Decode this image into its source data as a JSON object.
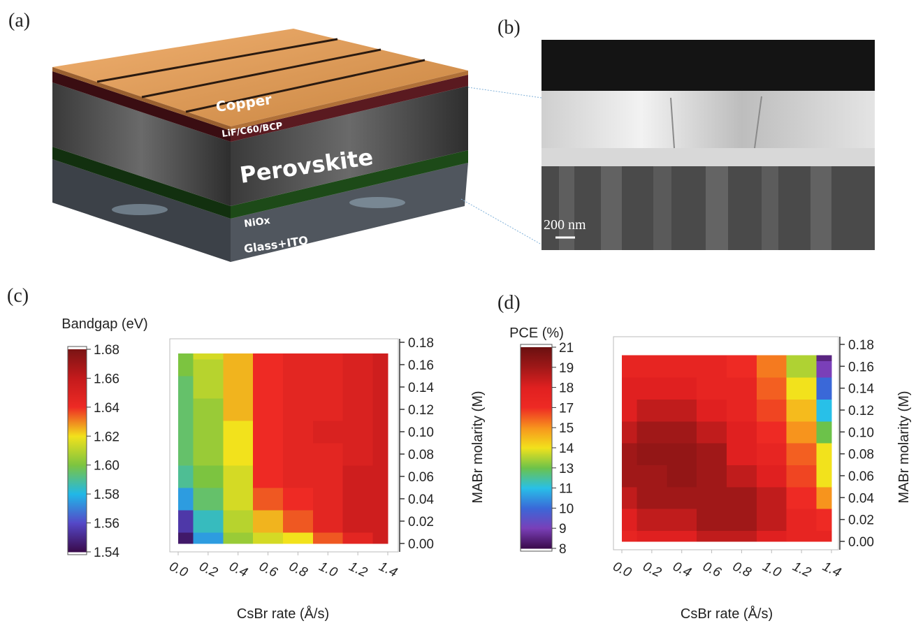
{
  "panels": {
    "a": {
      "label": "(a)",
      "layers": [
        "Copper",
        "LiF/C60/BCP",
        "Perovskite",
        "NiOx",
        "Glass+ITO"
      ]
    },
    "b": {
      "label": "(b)",
      "scale_bar": "200 nm"
    },
    "c": {
      "label": "(c)"
    },
    "d": {
      "label": "(d)"
    }
  },
  "chart_data": [
    {
      "type": "heatmap",
      "colorbar_title": "Bandgap (eV)",
      "xlabel": "CsBr rate (Å/s)",
      "ylabel": "MABr molarity (M)",
      "x": [
        0,
        0.2,
        0.4,
        0.6,
        0.8,
        1.0,
        1.2,
        1.4
      ],
      "y": [
        0,
        0.02,
        0.04,
        0.06,
        0.08,
        0.1,
        0.12,
        0.14,
        0.16,
        0.17
      ],
      "z": [
        [
          1.545,
          1.575,
          1.605,
          1.615,
          1.62,
          1.635,
          1.645,
          1.655
        ],
        [
          1.555,
          1.585,
          1.61,
          1.625,
          1.635,
          1.645,
          1.655,
          1.655
        ],
        [
          1.575,
          1.595,
          1.615,
          1.635,
          1.64,
          1.645,
          1.655,
          1.655
        ],
        [
          1.59,
          1.6,
          1.615,
          1.64,
          1.645,
          1.645,
          1.655,
          1.655
        ],
        [
          1.595,
          1.605,
          1.62,
          1.64,
          1.645,
          1.645,
          1.65,
          1.655
        ],
        [
          1.595,
          1.605,
          1.62,
          1.64,
          1.645,
          1.65,
          1.65,
          1.655
        ],
        [
          1.595,
          1.605,
          1.625,
          1.64,
          1.645,
          1.645,
          1.65,
          1.655
        ],
        [
          1.595,
          1.61,
          1.625,
          1.64,
          1.645,
          1.645,
          1.65,
          1.655
        ],
        [
          1.6,
          1.61,
          1.625,
          1.64,
          1.645,
          1.645,
          1.65,
          1.655
        ],
        [
          1.6,
          1.615,
          1.625,
          1.64,
          1.645,
          1.645,
          1.65,
          1.655
        ]
      ],
      "xlim": [
        0,
        1.4
      ],
      "ylim": [
        0,
        0.18
      ],
      "xticks": [
        {
          "value": 0,
          "label": "0.0"
        },
        {
          "value": 0.2,
          "label": "0.2"
        },
        {
          "value": 0.4,
          "label": "0.4"
        },
        {
          "value": 0.6,
          "label": "0.6"
        },
        {
          "value": 0.8,
          "label": "0.8"
        },
        {
          "value": 1.0,
          "label": "1.0"
        },
        {
          "value": 1.2,
          "label": "1.2"
        },
        {
          "value": 1.4,
          "label": "1.4"
        }
      ],
      "yticks": [
        {
          "value": 0,
          "label": "0.00"
        },
        {
          "value": 0.02,
          "label": "0.02"
        },
        {
          "value": 0.04,
          "label": "0.04"
        },
        {
          "value": 0.06,
          "label": "0.06"
        },
        {
          "value": 0.08,
          "label": "0.08"
        },
        {
          "value": 0.1,
          "label": "0.10"
        },
        {
          "value": 0.12,
          "label": "0.12"
        },
        {
          "value": 0.14,
          "label": "0.14"
        },
        {
          "value": 0.16,
          "label": "0.16"
        },
        {
          "value": 0.18,
          "label": "0.18"
        }
      ],
      "zticks": [
        1.54,
        1.56,
        1.58,
        {
          "value": 1.6,
          "label": "1.60"
        },
        1.62,
        1.64,
        1.66,
        1.68
      ],
      "colormap": [
        "#3a0a4a",
        "#5548c8",
        "#20b8e8",
        "#7cc440",
        "#f2e21c",
        "#ee2a24",
        "#c41a1c",
        "#7a1414"
      ]
    },
    {
      "type": "heatmap",
      "colorbar_title": "PCE (%)",
      "xlabel": "CsBr rate (Å/s)",
      "ylabel": "MABr molarity (M)",
      "x": [
        0,
        0.2,
        0.4,
        0.6,
        0.8,
        1.0,
        1.2,
        1.4
      ],
      "y": [
        0,
        0.02,
        0.04,
        0.06,
        0.08,
        0.1,
        0.12,
        0.14,
        0.16,
        0.17
      ],
      "z": [
        [
          17.5,
          18,
          18,
          18.5,
          18.5,
          18,
          17.5,
          17.5
        ],
        [
          18,
          18.5,
          18.5,
          19,
          19,
          18.5,
          17.5,
          17
        ],
        [
          18.5,
          19,
          19,
          19,
          19,
          18.5,
          17,
          15
        ],
        [
          19,
          19,
          19.5,
          19,
          18.5,
          18,
          16.5,
          14
        ],
        [
          19,
          19.5,
          19.5,
          19,
          18,
          17.5,
          16,
          14
        ],
        [
          18.5,
          19,
          19,
          18.5,
          18,
          17,
          15,
          13
        ],
        [
          18,
          18.5,
          18.5,
          18,
          17.5,
          16.5,
          14.5,
          11
        ],
        [
          18,
          18,
          18,
          17.5,
          17.5,
          16,
          14,
          10
        ],
        [
          17.5,
          17.5,
          17.5,
          17.5,
          17,
          15.5,
          13.5,
          9
        ],
        [
          17.5,
          17.5,
          17.5,
          17.5,
          17,
          15.5,
          13.5,
          8.5
        ]
      ],
      "xlim": [
        0,
        1.4
      ],
      "ylim": [
        0,
        0.18
      ],
      "xticks": [
        {
          "value": 0,
          "label": "0.0"
        },
        {
          "value": 0.2,
          "label": "0.2"
        },
        {
          "value": 0.4,
          "label": "0.4"
        },
        {
          "value": 0.6,
          "label": "0.6"
        },
        {
          "value": 0.8,
          "label": "0.8"
        },
        {
          "value": 1.0,
          "label": "1.0"
        },
        {
          "value": 1.2,
          "label": "1.2"
        },
        {
          "value": 1.4,
          "label": "1.4"
        }
      ],
      "yticks": [
        {
          "value": 0,
          "label": "0.00"
        },
        {
          "value": 0.02,
          "label": "0.02"
        },
        {
          "value": 0.04,
          "label": "0.04"
        },
        {
          "value": 0.06,
          "label": "0.06"
        },
        {
          "value": 0.08,
          "label": "0.08"
        },
        {
          "value": 0.1,
          "label": "0.10"
        },
        {
          "value": 0.12,
          "label": "0.12"
        },
        {
          "value": 0.14,
          "label": "0.14"
        },
        {
          "value": 0.16,
          "label": "0.16"
        },
        {
          "value": 0.18,
          "label": "0.18"
        }
      ],
      "zticks": [
        8,
        9,
        10,
        11,
        13,
        14,
        15,
        17,
        18,
        19,
        21
      ],
      "colormap": [
        "#3a0a4a",
        "#7a3fb8",
        "#3a68d8",
        "#28c0e8",
        "#6cc24a",
        "#f2e21c",
        "#f7941d",
        "#ee2a24",
        "#e02020",
        "#a01818",
        "#6a1010"
      ]
    }
  ]
}
